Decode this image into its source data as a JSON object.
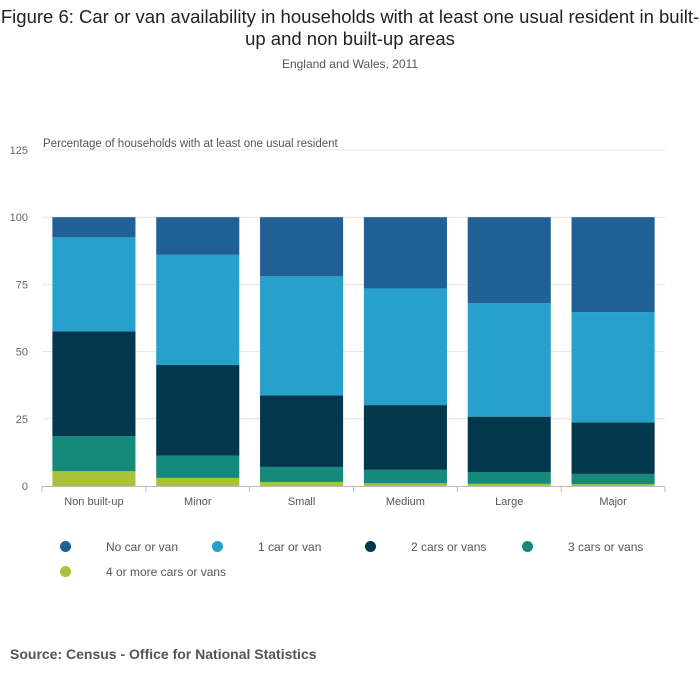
{
  "title": "Figure 6: Car or van availability in households with at least one usual resident in built-up and non built-up areas",
  "subtitle": "England and Wales, 2011",
  "source": "Source: Census - Office for National Statistics",
  "chart_data": {
    "type": "bar",
    "stacked": true,
    "ylabel": "Percentage of households with at least one usual resident",
    "ylim": [
      0,
      125
    ],
    "yticks": [
      0,
      25,
      50,
      75,
      100,
      125
    ],
    "grid": true,
    "legend_position": "bottom",
    "categories": [
      "Non built-up",
      "Minor",
      "Small",
      "Medium",
      "Large",
      "Major"
    ],
    "series": [
      {
        "name": "4 or more cars or vans",
        "color": "#a8c23a",
        "values": [
          5.5,
          3.0,
          1.5,
          1.0,
          0.8,
          0.7
        ]
      },
      {
        "name": "3 cars or vans",
        "color": "#158a7b",
        "values": [
          13.0,
          8.3,
          5.6,
          5.0,
          4.3,
          3.8
        ]
      },
      {
        "name": "2 cars or vans",
        "color": "#02374e",
        "values": [
          39.0,
          33.7,
          26.6,
          24.1,
          20.7,
          19.2
        ]
      },
      {
        "name": "1 car or van",
        "color": "#27a0cc",
        "values": [
          35.0,
          41.0,
          44.3,
          43.4,
          42.2,
          41.0
        ]
      },
      {
        "name": "No car or van",
        "color": "#206095",
        "values": [
          7.5,
          14.0,
          22.0,
          26.5,
          32.0,
          35.3
        ]
      }
    ]
  },
  "legend": [
    {
      "label": "No car or van",
      "color": "#206095"
    },
    {
      "label": "1 car or van",
      "color": "#27a0cc"
    },
    {
      "label": "2 cars or vans",
      "color": "#02374e"
    },
    {
      "label": "3 cars or vans",
      "color": "#158a7b"
    },
    {
      "label": "4 or more cars or vans",
      "color": "#a8c23a"
    }
  ]
}
